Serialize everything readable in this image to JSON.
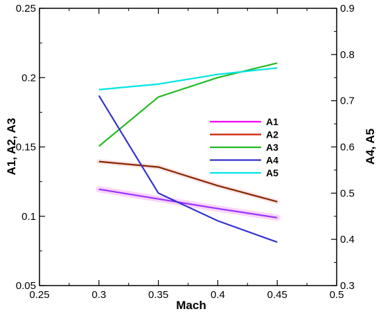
{
  "chart_data": {
    "type": "line",
    "xlabel": "Mach",
    "ylabel_left": "A1, A2, A3",
    "ylabel_right": "A4, A5",
    "x": [
      0.3,
      0.35,
      0.4,
      0.45
    ],
    "xlim": [
      0.25,
      0.5
    ],
    "xticks": [
      0.25,
      0.3,
      0.35,
      0.4,
      0.45,
      0.5
    ],
    "xtick_labels": [
      "0.25",
      "0.3",
      "0.35",
      "0.4",
      "0.45",
      "0.5"
    ],
    "ylim_left": [
      0.05,
      0.25
    ],
    "yticks_left": [
      0.05,
      0.1,
      0.15,
      0.2,
      0.25
    ],
    "ytick_labels_left": [
      "0.05",
      "0.1",
      "0.15",
      "0.2",
      "0.25"
    ],
    "ylim_right": [
      0.3,
      0.9
    ],
    "yticks_right": [
      0.3,
      0.4,
      0.5,
      0.6,
      0.7,
      0.8,
      0.9
    ],
    "ytick_labels_right": [
      "0.3",
      "0.4",
      "0.5",
      "0.6",
      "0.7",
      "0.8",
      "0.9"
    ],
    "grid": false,
    "legend_position": "center-right",
    "series": [
      {
        "name": "A1",
        "axis": "left",
        "color": "#ff00ff",
        "line_color": "#9933ff",
        "values": [
          0.1195,
          0.1125,
          0.1055,
          0.099
        ]
      },
      {
        "name": "A2",
        "axis": "left",
        "color": "#cc2200",
        "line_color": "#8b2500",
        "values": [
          0.1395,
          0.1355,
          0.122,
          0.1105
        ]
      },
      {
        "name": "A3",
        "axis": "left",
        "color": "#22bb22",
        "line_color": "#22bb22",
        "values": [
          0.1505,
          0.186,
          0.2,
          0.2105
        ]
      },
      {
        "name": "A4",
        "axis": "right",
        "color": "#3333cc",
        "line_color": "#3333cc",
        "values": [
          0.711,
          0.5,
          0.44,
          0.394
        ]
      },
      {
        "name": "A5",
        "axis": "right",
        "color": "#00e5e5",
        "line_color": "#00e5e5",
        "values": [
          0.724,
          0.736,
          0.757,
          0.771
        ]
      }
    ]
  }
}
